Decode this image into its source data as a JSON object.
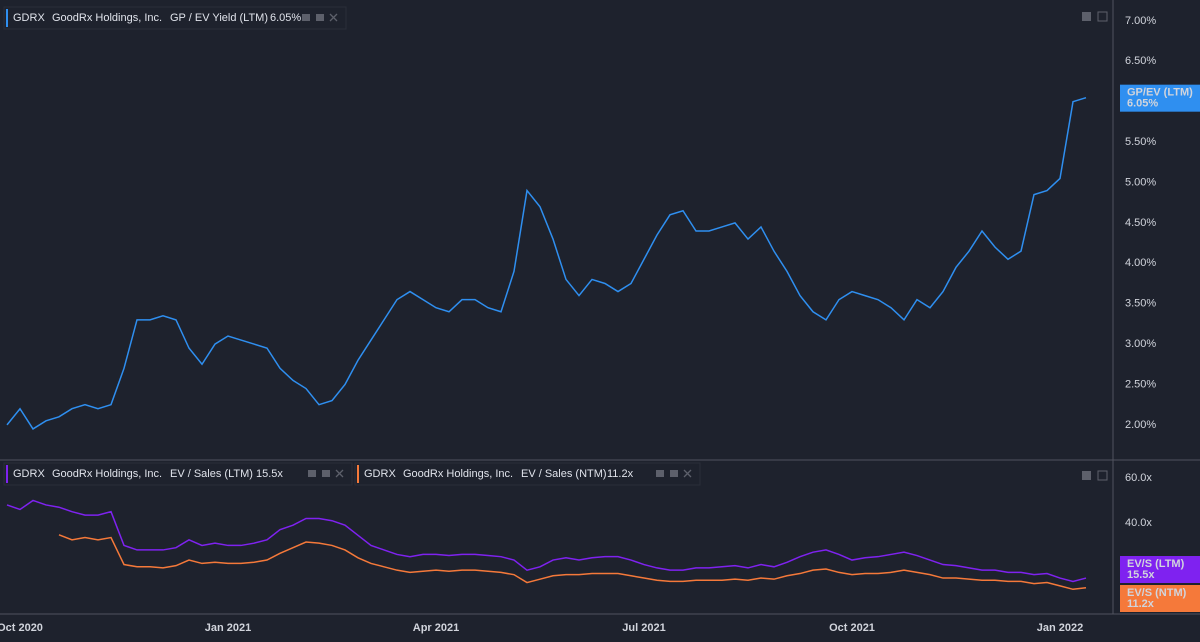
{
  "chart_data": [
    {
      "type": "line",
      "ylim": [
        1.59,
        7.16
      ],
      "yticks": [
        {
          "value": 2,
          "label": "2.00%"
        },
        {
          "value": 2.5,
          "label": "2.50%"
        },
        {
          "value": 3,
          "label": "3.00%"
        },
        {
          "value": 3.5,
          "label": "3.50%"
        },
        {
          "value": 4,
          "label": "4.00%"
        },
        {
          "value": 4.5,
          "label": "4.50%"
        },
        {
          "value": 5,
          "label": "5.00%"
        },
        {
          "value": 5.5,
          "label": "5.50%"
        },
        {
          "value": 6,
          "label": "6.00%"
        },
        {
          "value": 6.5,
          "label": "6.50%"
        },
        {
          "value": 7,
          "label": "7.00%"
        }
      ],
      "series": [
        {
          "ticker": "GDRX",
          "company": "GoodRx Holdings, Inc.",
          "name": "GP / EV Yield (LTM)",
          "legend_value": "6.05%",
          "badge": "GP/EV (LTM)",
          "color": "#2f8ff0",
          "values": [
            2.0,
            2.2,
            1.95,
            2.05,
            2.1,
            2.2,
            2.25,
            2.2,
            2.25,
            2.7,
            3.3,
            3.3,
            3.35,
            3.3,
            2.95,
            2.75,
            3.0,
            3.1,
            3.05,
            3.0,
            2.95,
            2.7,
            2.55,
            2.45,
            2.25,
            2.3,
            2.5,
            2.8,
            3.05,
            3.3,
            3.55,
            3.65,
            3.55,
            3.45,
            3.4,
            3.55,
            3.55,
            3.45,
            3.4,
            3.9,
            4.9,
            4.7,
            4.3,
            3.8,
            3.6,
            3.8,
            3.75,
            3.65,
            3.75,
            4.05,
            4.35,
            4.6,
            4.65,
            4.4,
            4.4,
            4.45,
            4.5,
            4.3,
            4.45,
            4.15,
            3.9,
            3.6,
            3.4,
            3.3,
            3.55,
            3.65,
            3.6,
            3.55,
            3.45,
            3.3,
            3.55,
            3.45,
            3.65,
            3.95,
            4.15,
            4.4,
            4.2,
            4.05,
            4.15,
            4.85,
            4.9,
            5.05,
            6.0,
            6.05
          ]
        }
      ]
    },
    {
      "type": "line",
      "ylim": [
        0.4,
        67.1
      ],
      "yticks": [
        {
          "value": 40,
          "label": "40.0x"
        },
        {
          "value": 60,
          "label": "60.0x"
        }
      ],
      "categories": [
        null,
        "Oct 2020",
        null,
        null,
        null,
        null,
        null,
        null,
        null,
        null,
        null,
        null,
        null,
        null,
        null,
        null,
        null,
        "Jan 2021",
        null,
        null,
        null,
        null,
        null,
        null,
        null,
        null,
        null,
        null,
        null,
        null,
        null,
        null,
        null,
        "Apr 2021",
        null,
        null,
        null,
        null,
        null,
        null,
        null,
        null,
        null,
        null,
        null,
        null,
        null,
        null,
        null,
        "Jul 2021",
        null,
        null,
        null,
        null,
        null,
        null,
        null,
        null,
        null,
        null,
        null,
        null,
        null,
        null,
        null,
        "Oct 2021",
        null,
        null,
        null,
        null,
        null,
        null,
        null,
        null,
        null,
        null,
        null,
        null,
        null,
        null,
        null,
        "Jan 2022",
        null,
        null
      ],
      "series": [
        {
          "ticker": "GDRX",
          "company": "GoodRx Holdings, Inc.",
          "name": "EV / Sales (LTM)",
          "legend_value": "15.5x",
          "badge": "EV/S (LTM)",
          "color": "#7f22f0",
          "values": [
            48,
            46,
            50,
            48,
            47,
            45,
            43.5,
            43.5,
            45,
            30,
            28,
            28,
            28,
            29,
            32.5,
            30,
            31,
            30,
            30,
            31,
            32.5,
            37,
            39,
            42,
            42,
            41,
            39,
            34.5,
            30,
            28,
            26,
            25,
            26,
            26,
            25.5,
            26,
            26,
            25.5,
            25,
            23.5,
            19,
            20.5,
            23.5,
            24.5,
            23.5,
            24.5,
            25,
            25,
            23.5,
            21.5,
            20,
            19,
            19,
            20,
            20,
            20.5,
            21,
            20,
            21.5,
            20.5,
            22.5,
            25,
            27,
            28,
            26,
            23.5,
            24.5,
            25,
            26,
            27,
            25.5,
            23.5,
            21.5,
            21,
            20,
            19,
            19,
            18,
            18,
            17,
            17.5,
            15.5,
            14,
            15.5
          ]
        },
        {
          "ticker": "GDRX",
          "company": "GoodRx Holdings, Inc.",
          "name": "EV / Sales (NTM)",
          "legend_value": "11.2x",
          "badge": "EV/S (NTM)",
          "color": "#f5793a",
          "values": [
            null,
            null,
            null,
            null,
            34.7,
            32.5,
            33.5,
            32.5,
            33.5,
            21.5,
            20.5,
            20.5,
            20,
            21,
            23.5,
            22,
            22.5,
            22,
            22,
            22.5,
            23.5,
            26.5,
            29,
            31.5,
            31,
            30,
            28,
            24.5,
            22,
            20.5,
            19,
            18,
            18.5,
            19,
            18.5,
            19,
            19,
            18.5,
            18,
            17,
            13.5,
            15,
            16.5,
            17,
            17,
            17.5,
            17.5,
            17.5,
            16.5,
            15.5,
            14.5,
            14,
            14,
            14.5,
            14.5,
            14.5,
            15,
            14.5,
            15.5,
            15,
            16.5,
            17.5,
            19,
            19.5,
            18,
            17,
            17.5,
            17.5,
            18,
            19,
            18,
            17,
            15.5,
            15.5,
            15,
            14.5,
            14.5,
            14,
            14,
            13,
            13.5,
            12,
            10.5,
            11.2
          ]
        }
      ]
    }
  ]
}
